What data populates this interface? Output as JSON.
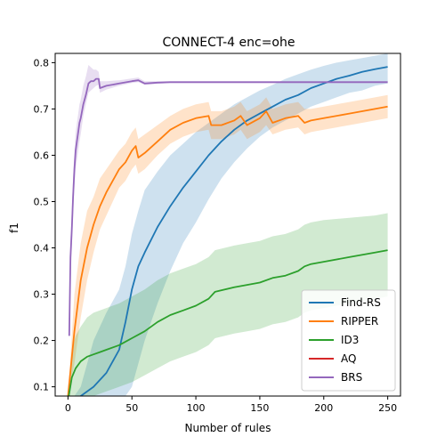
{
  "chart_data": {
    "type": "line",
    "title": "CONNECT-4 enc=ohe",
    "xlabel": "Number of rules",
    "ylabel": "f1",
    "xlim": [
      -10,
      260
    ],
    "ylim": [
      0.08,
      0.82
    ],
    "xticks": [
      0,
      50,
      100,
      150,
      200,
      250
    ],
    "yticks": [
      0.1,
      0.2,
      0.3,
      0.4,
      0.5,
      0.6,
      0.7,
      0.8
    ],
    "grid": false,
    "legend_position": "lower-right",
    "series": [
      {
        "name": "Find-RS",
        "color": "#1f77b4",
        "x": [
          0,
          10,
          20,
          30,
          40,
          45,
          50,
          55,
          60,
          70,
          80,
          90,
          100,
          110,
          120,
          130,
          140,
          150,
          160,
          170,
          180,
          190,
          200,
          210,
          220,
          230,
          240,
          250
        ],
        "y": [
          0.06,
          0.08,
          0.1,
          0.13,
          0.18,
          0.24,
          0.31,
          0.36,
          0.39,
          0.445,
          0.49,
          0.53,
          0.565,
          0.6,
          0.63,
          0.655,
          0.675,
          0.69,
          0.705,
          0.72,
          0.73,
          0.745,
          0.755,
          0.765,
          0.772,
          0.78,
          0.786,
          0.791
        ],
        "lower": [
          0.06,
          0.08,
          0.08,
          0.08,
          0.08,
          0.08,
          0.1,
          0.15,
          0.2,
          0.28,
          0.35,
          0.41,
          0.455,
          0.505,
          0.55,
          0.585,
          0.615,
          0.64,
          0.66,
          0.675,
          0.69,
          0.705,
          0.715,
          0.725,
          0.735,
          0.74,
          0.75,
          0.755
        ],
        "upper": [
          0.06,
          0.1,
          0.2,
          0.26,
          0.31,
          0.36,
          0.43,
          0.48,
          0.525,
          0.565,
          0.6,
          0.625,
          0.65,
          0.67,
          0.69,
          0.71,
          0.725,
          0.74,
          0.752,
          0.765,
          0.775,
          0.785,
          0.793,
          0.8,
          0.805,
          0.81,
          0.815,
          0.82
        ]
      },
      {
        "name": "RIPPER",
        "color": "#ff7f0e",
        "x": [
          0,
          5,
          10,
          15,
          20,
          25,
          30,
          35,
          40,
          45,
          50,
          53,
          55,
          60,
          70,
          80,
          90,
          100,
          110,
          112,
          120,
          130,
          135,
          140,
          150,
          155,
          160,
          170,
          180,
          185,
          190,
          200,
          220,
          240,
          250
        ],
        "y": [
          0.08,
          0.22,
          0.33,
          0.4,
          0.45,
          0.49,
          0.52,
          0.545,
          0.57,
          0.585,
          0.61,
          0.62,
          0.595,
          0.605,
          0.63,
          0.655,
          0.67,
          0.68,
          0.685,
          0.665,
          0.665,
          0.675,
          0.685,
          0.665,
          0.68,
          0.695,
          0.67,
          0.68,
          0.685,
          0.67,
          0.675,
          0.68,
          0.69,
          0.7,
          0.705
        ],
        "lower": [
          0.08,
          0.15,
          0.25,
          0.33,
          0.39,
          0.44,
          0.47,
          0.5,
          0.53,
          0.545,
          0.57,
          0.58,
          0.56,
          0.57,
          0.6,
          0.625,
          0.64,
          0.65,
          0.655,
          0.635,
          0.635,
          0.645,
          0.655,
          0.635,
          0.65,
          0.665,
          0.645,
          0.655,
          0.66,
          0.645,
          0.65,
          0.655,
          0.665,
          0.675,
          0.68
        ],
        "upper": [
          0.08,
          0.3,
          0.41,
          0.48,
          0.51,
          0.55,
          0.57,
          0.59,
          0.61,
          0.625,
          0.65,
          0.66,
          0.635,
          0.645,
          0.665,
          0.685,
          0.7,
          0.71,
          0.715,
          0.695,
          0.695,
          0.705,
          0.715,
          0.695,
          0.71,
          0.725,
          0.7,
          0.71,
          0.715,
          0.7,
          0.7,
          0.705,
          0.715,
          0.725,
          0.73
        ]
      },
      {
        "name": "ID3",
        "color": "#2ca02c",
        "x": [
          0,
          3,
          6,
          10,
          15,
          20,
          25,
          30,
          40,
          50,
          60,
          70,
          80,
          90,
          100,
          110,
          115,
          130,
          140,
          150,
          160,
          170,
          180,
          185,
          190,
          200,
          220,
          240,
          250
        ],
        "y": [
          0.07,
          0.12,
          0.14,
          0.155,
          0.165,
          0.17,
          0.175,
          0.18,
          0.19,
          0.205,
          0.22,
          0.24,
          0.255,
          0.265,
          0.275,
          0.29,
          0.305,
          0.315,
          0.32,
          0.325,
          0.335,
          0.34,
          0.35,
          0.36,
          0.365,
          0.37,
          0.38,
          0.39,
          0.395
        ],
        "lower": [
          0.07,
          0.08,
          0.08,
          0.08,
          0.08,
          0.08,
          0.085,
          0.09,
          0.1,
          0.11,
          0.125,
          0.14,
          0.155,
          0.165,
          0.175,
          0.19,
          0.205,
          0.215,
          0.22,
          0.225,
          0.235,
          0.24,
          0.25,
          0.26,
          0.265,
          0.27,
          0.28,
          0.29,
          0.295
        ],
        "upper": [
          0.07,
          0.18,
          0.21,
          0.23,
          0.25,
          0.26,
          0.265,
          0.27,
          0.28,
          0.295,
          0.31,
          0.33,
          0.345,
          0.355,
          0.365,
          0.38,
          0.395,
          0.405,
          0.41,
          0.415,
          0.425,
          0.43,
          0.44,
          0.45,
          0.455,
          0.46,
          0.465,
          0.47,
          0.475
        ]
      },
      {
        "name": "AQ",
        "color": "#d62728",
        "x": [],
        "y": []
      },
      {
        "name": "BRS",
        "color": "#9467bd",
        "x": [
          1,
          2,
          3,
          4,
          5,
          6,
          7,
          8,
          9,
          10,
          12,
          14,
          16,
          18,
          20,
          22,
          24,
          25,
          30,
          40,
          50,
          55,
          60,
          70,
          80,
          100,
          150,
          200,
          250
        ],
        "y": [
          0.21,
          0.38,
          0.44,
          0.51,
          0.57,
          0.61,
          0.63,
          0.65,
          0.67,
          0.68,
          0.71,
          0.73,
          0.755,
          0.76,
          0.76,
          0.765,
          0.765,
          0.745,
          0.75,
          0.755,
          0.76,
          0.762,
          0.755,
          0.757,
          0.758,
          0.758,
          0.758,
          0.758,
          0.758
        ],
        "lower": [
          0.21,
          0.34,
          0.4,
          0.47,
          0.53,
          0.57,
          0.59,
          0.61,
          0.63,
          0.645,
          0.685,
          0.71,
          0.735,
          0.74,
          0.745,
          0.75,
          0.752,
          0.735,
          0.742,
          0.75,
          0.756,
          0.758,
          0.752,
          0.754,
          0.756,
          0.756,
          0.756,
          0.756,
          0.756
        ],
        "upper": [
          0.21,
          0.42,
          0.48,
          0.55,
          0.61,
          0.65,
          0.67,
          0.69,
          0.71,
          0.72,
          0.75,
          0.77,
          0.795,
          0.79,
          0.785,
          0.785,
          0.78,
          0.76,
          0.76,
          0.762,
          0.766,
          0.768,
          0.76,
          0.76,
          0.76,
          0.76,
          0.76,
          0.76,
          0.76
        ]
      }
    ]
  }
}
